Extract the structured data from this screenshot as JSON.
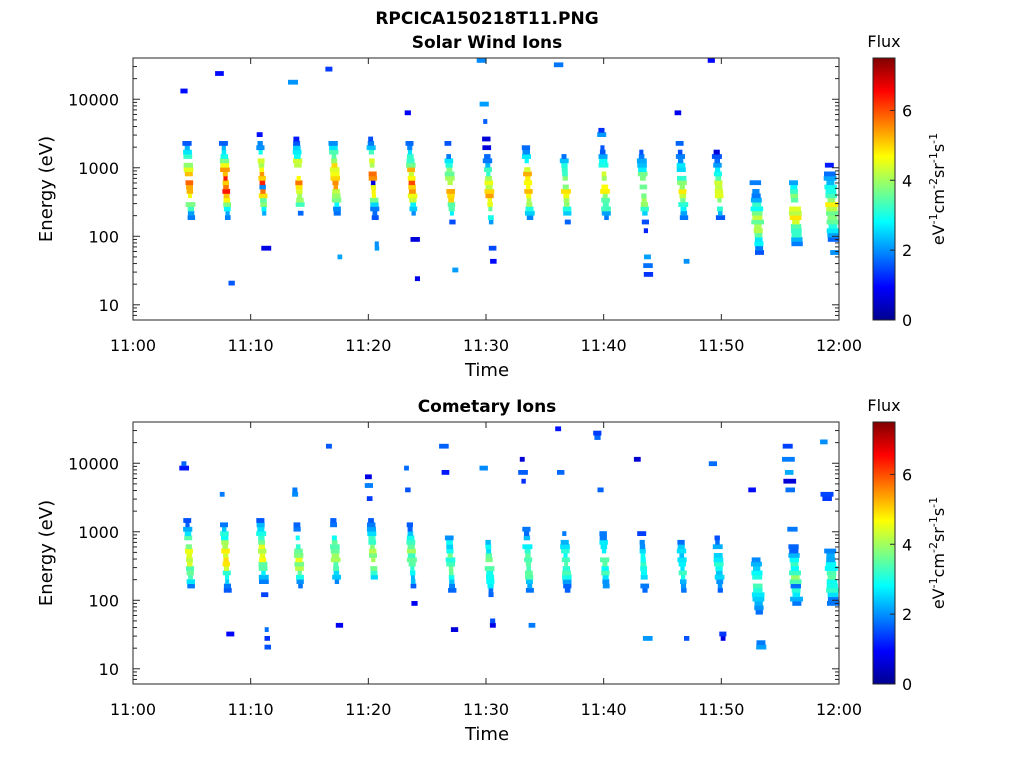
{
  "figure_title": "RPCICA150218T11.PNG",
  "colorbar": {
    "title": "Flux",
    "ticks": [
      "0",
      "2",
      "4",
      "6"
    ],
    "min": 0,
    "max": 7.5,
    "colormap": "jet",
    "unit": {
      "p1": "eV",
      "s1": "-1",
      "p2": "cm",
      "s2": "-2",
      "p3": "sr",
      "s3": "-1",
      "p4": "s",
      "s4": "-1"
    }
  },
  "chart_data": [
    {
      "type": "heatmap",
      "title": "Solar Wind Ions",
      "xlabel": "Time",
      "ylabel": "Energy (eV)",
      "x_ticks": [
        "11:00",
        "11:10",
        "11:20",
        "11:30",
        "11:40",
        "11:50",
        "12:00"
      ],
      "x_range": [
        "11:00",
        "12:00"
      ],
      "y_ticks": [
        "10",
        "100",
        "1000",
        "10000"
      ],
      "y_range": [
        6,
        40000
      ],
      "y_scale": "log",
      "z_label": "Flux",
      "z_range": [
        0,
        7.5
      ],
      "scans": [
        {
          "time": "11:04.8",
          "peak_energy": 550,
          "peak_flux": 5.8
        },
        {
          "time": "11:07.9",
          "peak_energy": 550,
          "peak_flux": 5.9
        },
        {
          "time": "11:11.0",
          "peak_energy": 600,
          "peak_flux": 5.7
        },
        {
          "time": "11:14.1",
          "peak_energy": 600,
          "peak_flux": 5.6
        },
        {
          "time": "11:17.2",
          "peak_energy": 650,
          "peak_flux": 5.5
        },
        {
          "time": "11:20.4",
          "peak_energy": 650,
          "peak_flux": 5.4
        },
        {
          "time": "11:23.7",
          "peak_energy": 600,
          "peak_flux": 5.3
        },
        {
          "time": "11:27.0",
          "peak_energy": 450,
          "peak_flux": 4.8
        },
        {
          "time": "11:30.3",
          "peak_energy": 400,
          "peak_flux": 4.8
        },
        {
          "time": "11:33.6",
          "peak_energy": 500,
          "peak_flux": 5.4
        },
        {
          "time": "11:36.8",
          "peak_energy": 450,
          "peak_flux": 4.5
        },
        {
          "time": "11:40.1",
          "peak_energy": 500,
          "peak_flux": 4.7
        },
        {
          "time": "11:43.4",
          "peak_energy": 450,
          "peak_flux": 4.3
        },
        {
          "time": "11:46.7",
          "peak_energy": 450,
          "peak_flux": 4.2
        },
        {
          "time": "11:49.8",
          "peak_energy": 450,
          "peak_flux": 4.0
        },
        {
          "time": "11:53.1",
          "peak_energy": 150,
          "peak_flux": 3.9
        },
        {
          "time": "11:56.3",
          "peak_energy": 200,
          "peak_flux": 4.5
        },
        {
          "time": "11:59.4",
          "peak_energy": 250,
          "peak_flux": 4.3
        }
      ]
    },
    {
      "type": "heatmap",
      "title": "Cometary Ions",
      "xlabel": "Time",
      "ylabel": "Energy (eV)",
      "x_ticks": [
        "11:00",
        "11:10",
        "11:20",
        "11:30",
        "11:40",
        "11:50",
        "12:00"
      ],
      "x_range": [
        "11:00",
        "12:00"
      ],
      "y_ticks": [
        "10",
        "100",
        "1000",
        "10000"
      ],
      "y_range": [
        6,
        40000
      ],
      "y_scale": "log",
      "z_label": "Flux",
      "z_range": [
        0,
        7.5
      ],
      "scans": [
        {
          "time": "11:04.8",
          "peak_energy": 400,
          "peak_flux": 4.3
        },
        {
          "time": "11:07.9",
          "peak_energy": 400,
          "peak_flux": 4.4
        },
        {
          "time": "11:11.0",
          "peak_energy": 450,
          "peak_flux": 4.3
        },
        {
          "time": "11:14.1",
          "peak_energy": 400,
          "peak_flux": 4.1
        },
        {
          "time": "11:17.2",
          "peak_energy": 450,
          "peak_flux": 4.0
        },
        {
          "time": "11:20.4",
          "peak_energy": 450,
          "peak_flux": 3.9
        },
        {
          "time": "11:23.7",
          "peak_energy": 400,
          "peak_flux": 3.8
        },
        {
          "time": "11:27.0",
          "peak_energy": 350,
          "peak_flux": 3.5
        },
        {
          "time": "11:30.3",
          "peak_energy": 300,
          "peak_flux": 3.5
        },
        {
          "time": "11:33.6",
          "peak_energy": 350,
          "peak_flux": 3.9
        },
        {
          "time": "11:36.8",
          "peak_energy": 350,
          "peak_flux": 3.3
        },
        {
          "time": "11:40.1",
          "peak_energy": 350,
          "peak_flux": 3.3
        },
        {
          "time": "11:43.4",
          "peak_energy": 300,
          "peak_flux": 3.1
        },
        {
          "time": "11:46.7",
          "peak_energy": 300,
          "peak_flux": 3.0
        },
        {
          "time": "11:49.8",
          "peak_energy": 300,
          "peak_flux": 2.9
        },
        {
          "time": "11:53.1",
          "peak_energy": 150,
          "peak_flux": 3.2
        },
        {
          "time": "11:56.3",
          "peak_energy": 200,
          "peak_flux": 3.5
        },
        {
          "time": "11:59.4",
          "peak_energy": 200,
          "peak_flux": 3.3
        }
      ]
    }
  ]
}
